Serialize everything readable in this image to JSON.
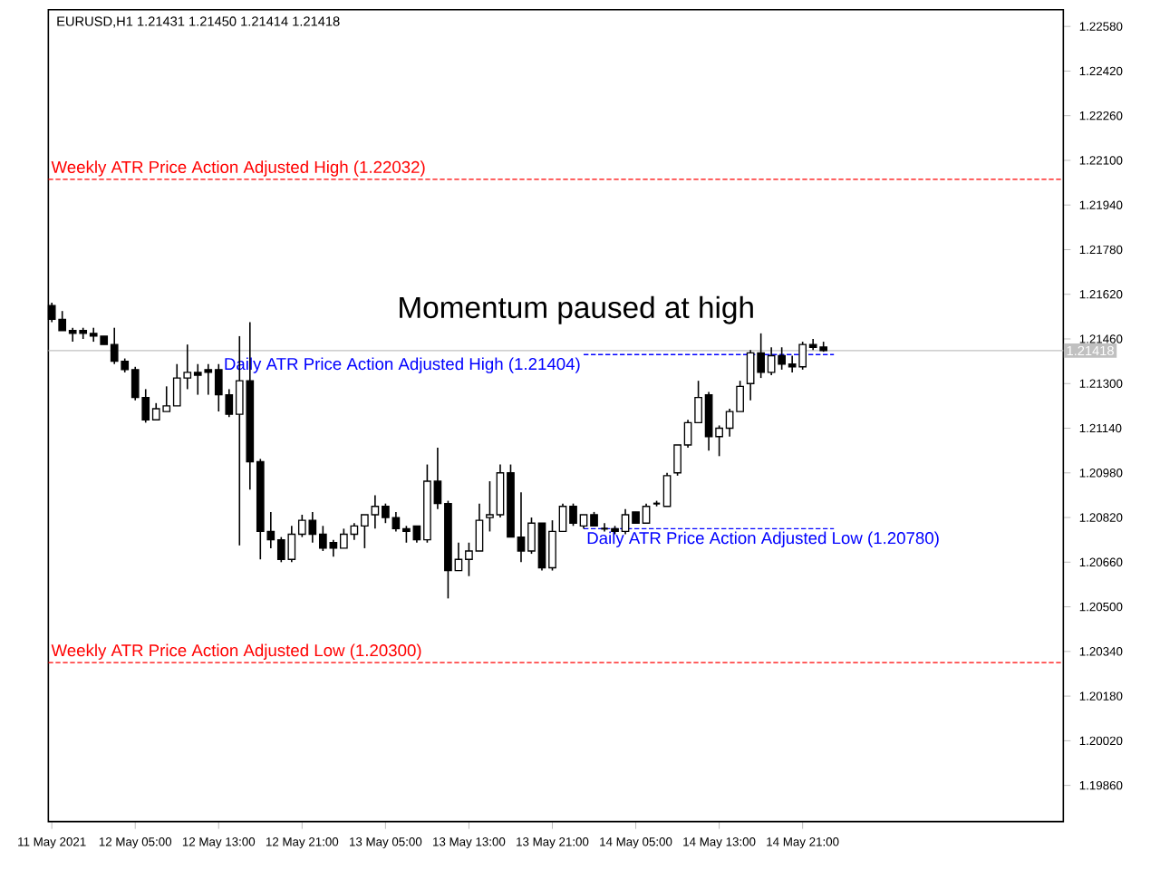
{
  "chart_data": {
    "type": "candlestick",
    "title": "EURUSD,H1  1.21431 1.21450 1.21414 1.21418",
    "annotations": [
      "Momentum paused at high"
    ],
    "x": [
      "2021-05-11T21:00",
      "2021-05-11T22:00",
      "2021-05-11T23:00",
      "2021-05-12T00:00",
      "2021-05-12T01:00",
      "2021-05-12T02:00",
      "2021-05-12T03:00",
      "2021-05-12T04:00",
      "2021-05-12T05:00",
      "2021-05-12T06:00",
      "2021-05-12T07:00",
      "2021-05-12T08:00",
      "2021-05-12T09:00",
      "2021-05-12T10:00",
      "2021-05-12T11:00",
      "2021-05-12T12:00",
      "2021-05-12T13:00",
      "2021-05-12T14:00",
      "2021-05-12T15:00",
      "2021-05-12T16:00",
      "2021-05-12T17:00",
      "2021-05-12T18:00",
      "2021-05-12T19:00",
      "2021-05-12T20:00",
      "2021-05-12T21:00",
      "2021-05-12T22:00",
      "2021-05-12T23:00",
      "2021-05-13T00:00",
      "2021-05-13T01:00",
      "2021-05-13T02:00",
      "2021-05-13T03:00",
      "2021-05-13T04:00",
      "2021-05-13T05:00",
      "2021-05-13T06:00",
      "2021-05-13T07:00",
      "2021-05-13T08:00",
      "2021-05-13T09:00",
      "2021-05-13T10:00",
      "2021-05-13T11:00",
      "2021-05-13T12:00",
      "2021-05-13T13:00",
      "2021-05-13T14:00",
      "2021-05-13T15:00",
      "2021-05-13T16:00",
      "2021-05-13T17:00",
      "2021-05-13T18:00",
      "2021-05-13T19:00",
      "2021-05-13T20:00",
      "2021-05-13T21:00",
      "2021-05-13T22:00",
      "2021-05-13T23:00",
      "2021-05-14T00:00",
      "2021-05-14T01:00",
      "2021-05-14T02:00",
      "2021-05-14T03:00",
      "2021-05-14T04:00",
      "2021-05-14T05:00",
      "2021-05-14T06:00",
      "2021-05-14T07:00",
      "2021-05-14T08:00",
      "2021-05-14T09:00",
      "2021-05-14T10:00",
      "2021-05-14T11:00",
      "2021-05-14T12:00",
      "2021-05-14T13:00",
      "2021-05-14T14:00",
      "2021-05-14T15:00",
      "2021-05-14T16:00",
      "2021-05-14T17:00",
      "2021-05-14T18:00",
      "2021-05-14T19:00",
      "2021-05-14T20:00",
      "2021-05-14T21:00",
      "2021-05-14T22:00",
      "2021-05-14T23:00"
    ],
    "ohlc": [
      [
        1.2158,
        1.2159,
        1.2152,
        1.2153
      ],
      [
        1.2153,
        1.2156,
        1.2149,
        1.2149
      ],
      [
        1.2149,
        1.215,
        1.2145,
        1.2148
      ],
      [
        1.2149,
        1.215,
        1.2146,
        1.2148
      ],
      [
        1.2148,
        1.215,
        1.2145,
        1.2147
      ],
      [
        1.2147,
        1.2147,
        1.2144,
        1.2144
      ],
      [
        1.2144,
        1.215,
        1.2137,
        1.2138
      ],
      [
        1.2138,
        1.2139,
        1.2134,
        1.2135
      ],
      [
        1.2135,
        1.2136,
        1.2124,
        1.2125
      ],
      [
        1.2125,
        1.2128,
        1.2116,
        1.2117
      ],
      [
        1.2117,
        1.2123,
        1.2117,
        1.2121
      ],
      [
        1.212,
        1.2129,
        1.212,
        1.2122
      ],
      [
        1.2122,
        1.2137,
        1.2122,
        1.2132
      ],
      [
        1.2132,
        1.2144,
        1.2128,
        1.2134
      ],
      [
        1.2134,
        1.2137,
        1.2126,
        1.2133
      ],
      [
        1.2135,
        1.2137,
        1.2126,
        1.2134
      ],
      [
        1.2135,
        1.2137,
        1.212,
        1.2126
      ],
      [
        1.2126,
        1.2128,
        1.2118,
        1.2119
      ],
      [
        1.2119,
        1.2147,
        1.2072,
        1.2131
      ],
      [
        1.2131,
        1.2152,
        1.2092,
        1.2102
      ],
      [
        1.2102,
        1.2103,
        1.2067,
        1.2077
      ],
      [
        1.2077,
        1.2084,
        1.2071,
        1.2074
      ],
      [
        1.2074,
        1.2075,
        1.2066,
        1.2067
      ],
      [
        1.2067,
        1.2079,
        1.2066,
        1.2076
      ],
      [
        1.2076,
        1.2083,
        1.2075,
        1.2081
      ],
      [
        1.2081,
        1.2084,
        1.2073,
        1.2076
      ],
      [
        1.2076,
        1.2079,
        1.207,
        1.2071
      ],
      [
        1.2073,
        1.2074,
        1.2068,
        1.2071
      ],
      [
        1.2071,
        1.2078,
        1.2071,
        1.2076
      ],
      [
        1.2076,
        1.208,
        1.2074,
        1.2079
      ],
      [
        1.2079,
        1.2083,
        1.2071,
        1.2083
      ],
      [
        1.2083,
        1.209,
        1.2078,
        1.2086
      ],
      [
        1.2086,
        1.2087,
        1.208,
        1.2082
      ],
      [
        1.2082,
        1.2084,
        1.2077,
        1.2078
      ],
      [
        1.2078,
        1.2079,
        1.2073,
        1.2077
      ],
      [
        1.2079,
        1.2079,
        1.2073,
        1.2074
      ],
      [
        1.2074,
        1.2101,
        1.2073,
        1.2095
      ],
      [
        1.2095,
        1.2107,
        1.2085,
        1.2087
      ],
      [
        1.2087,
        1.2088,
        1.2053,
        1.2063
      ],
      [
        1.2063,
        1.2073,
        1.2063,
        1.2067
      ],
      [
        1.2067,
        1.2073,
        1.2061,
        1.207
      ],
      [
        1.207,
        1.2087,
        1.207,
        1.2081
      ],
      [
        1.2082,
        1.2095,
        1.2077,
        1.2083
      ],
      [
        1.2083,
        1.2101,
        1.2082,
        1.2098
      ],
      [
        1.2098,
        1.2101,
        1.2075,
        1.2075
      ],
      [
        1.2075,
        1.2091,
        1.2066,
        1.207
      ],
      [
        1.207,
        1.2082,
        1.2069,
        1.208
      ],
      [
        1.208,
        1.208,
        1.2063,
        1.2064
      ],
      [
        1.2064,
        1.2081,
        1.2063,
        1.2077
      ],
      [
        1.2077,
        1.2087,
        1.2077,
        1.2086
      ],
      [
        1.2086,
        1.2087,
        1.2079,
        1.208
      ],
      [
        1.2079,
        1.2083,
        1.2078,
        1.2083
      ],
      [
        1.2083,
        1.2084,
        1.2079,
        1.2079
      ],
      [
        1.2078,
        1.208,
        1.2077,
        1.2078
      ],
      [
        1.2078,
        1.2079,
        1.2076,
        1.2077
      ],
      [
        1.2077,
        1.2085,
        1.2076,
        1.2083
      ],
      [
        1.2084,
        1.2084,
        1.208,
        1.208
      ],
      [
        1.208,
        1.2087,
        1.208,
        1.2086
      ],
      [
        1.2087,
        1.2088,
        1.2086,
        1.2087
      ],
      [
        1.2086,
        1.2098,
        1.2086,
        1.2097
      ],
      [
        1.2098,
        1.2108,
        1.2097,
        1.2108
      ],
      [
        1.2108,
        1.2117,
        1.2107,
        1.2116
      ],
      [
        1.2116,
        1.2131,
        1.2116,
        1.2125
      ],
      [
        1.2126,
        1.2127,
        1.2106,
        1.2111
      ],
      [
        1.2111,
        1.2115,
        1.2104,
        1.2114
      ],
      [
        1.2114,
        1.2121,
        1.2111,
        1.212
      ],
      [
        1.212,
        1.2131,
        1.212,
        1.2129
      ],
      [
        1.213,
        1.2142,
        1.2124,
        1.2141
      ],
      [
        1.2141,
        1.2148,
        1.2132,
        1.2134
      ],
      [
        1.2134,
        1.2143,
        1.2133,
        1.214
      ],
      [
        1.214,
        1.2143,
        1.2135,
        1.2137
      ],
      [
        1.2137,
        1.214,
        1.2134,
        1.2136
      ],
      [
        1.2136,
        1.2145,
        1.2135,
        1.2144
      ],
      [
        1.2144,
        1.2146,
        1.2142,
        1.2143
      ],
      [
        1.21431,
        1.2145,
        1.21414,
        1.21418
      ]
    ],
    "series": [
      {
        "type": "line",
        "name": "Daily ATR Price Action Adjusted High (1.21404)",
        "color": "#0000ff",
        "line_style": "dashed",
        "x": [
          "2021-05-14T00:00",
          "2021-05-15T00:00"
        ],
        "values": [
          1.21404,
          1.21404
        ]
      },
      {
        "type": "line",
        "name": "Daily ATR Price Action Adjusted Low (1.20780)",
        "color": "#0000ff",
        "line_style": "dashed",
        "x": [
          "2021-05-14T00:00",
          "2021-05-15T00:00"
        ],
        "values": [
          1.2078,
          1.2078
        ]
      }
    ],
    "ref_lines": [
      {
        "axis": "y",
        "value": 1.22032,
        "label": "Weekly ATR Price Action Adjusted High (1.22032)",
        "color": "#ff0000",
        "line_style": "dashed"
      },
      {
        "axis": "y",
        "value": 1.203,
        "label": "Weekly ATR Price Action Adjusted Low (1.20300)",
        "color": "#ff0000",
        "line_style": "dashed"
      },
      {
        "axis": "y",
        "value": 1.21418,
        "label": "1.21418",
        "color": "#c0c0c0",
        "line_style": "solid"
      }
    ],
    "xlim": [
      "2021-05-11T20:40",
      "2021-05-15T22:00"
    ],
    "ylim": [
      1.1973,
      1.2264
    ],
    "xticks": [
      {
        "value": "2021-05-11T21:00",
        "label": "11 May 2021"
      },
      {
        "value": "2021-05-12T05:00",
        "label": "12 May 05:00"
      },
      {
        "value": "2021-05-12T13:00",
        "label": "12 May 13:00"
      },
      {
        "value": "2021-05-12T21:00",
        "label": "12 May 21:00"
      },
      {
        "value": "2021-05-13T05:00",
        "label": "13 May 05:00"
      },
      {
        "value": "2021-05-13T13:00",
        "label": "13 May 13:00"
      },
      {
        "value": "2021-05-13T21:00",
        "label": "13 May 21:00"
      },
      {
        "value": "2021-05-14T05:00",
        "label": "14 May 05:00"
      },
      {
        "value": "2021-05-14T13:00",
        "label": "14 May 13:00"
      },
      {
        "value": "2021-05-14T21:00",
        "label": "14 May 21:00"
      }
    ],
    "yticks": [
      {
        "value": 1.2258,
        "label": "1.22580"
      },
      {
        "value": 1.2242,
        "label": "1.22420"
      },
      {
        "value": 1.2226,
        "label": "1.22260"
      },
      {
        "value": 1.221,
        "label": "1.22100"
      },
      {
        "value": 1.2194,
        "label": "1.21940"
      },
      {
        "value": 1.2178,
        "label": "1.21780"
      },
      {
        "value": 1.2162,
        "label": "1.21620"
      },
      {
        "value": 1.2146,
        "label": "1.21460"
      },
      {
        "value": 1.213,
        "label": "1.21300"
      },
      {
        "value": 1.2114,
        "label": "1.21140"
      },
      {
        "value": 1.2098,
        "label": "1.20980"
      },
      {
        "value": 1.2082,
        "label": "1.20820"
      },
      {
        "value": 1.2066,
        "label": "1.20660"
      },
      {
        "value": 1.205,
        "label": "1.20500"
      },
      {
        "value": 1.2034,
        "label": "1.20340"
      },
      {
        "value": 1.2018,
        "label": "1.20180"
      },
      {
        "value": 1.2002,
        "label": "1.20020"
      },
      {
        "value": 1.1986,
        "label": "1.19860"
      }
    ]
  }
}
